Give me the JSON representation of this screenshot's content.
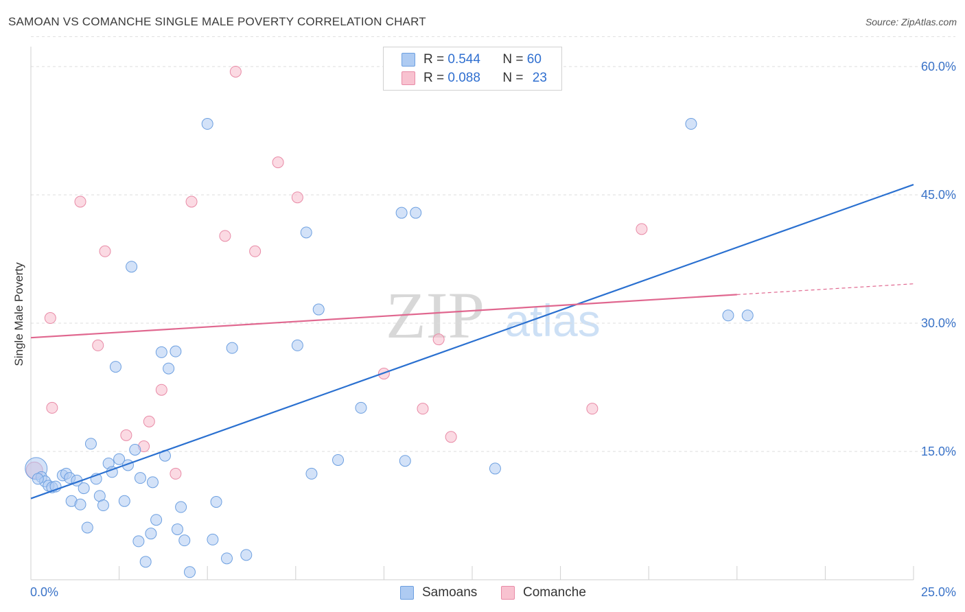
{
  "title": "SAMOAN VS COMANCHE SINGLE MALE POVERTY CORRELATION CHART",
  "source": "Source: ZipAtlas.com",
  "watermark": {
    "zip": "ZIP",
    "atlas": "atlas"
  },
  "legend": {
    "samoans": {
      "r_label": "R =",
      "r_value": "0.544",
      "n_label": "N =",
      "n_value": "60"
    },
    "comanche": {
      "r_label": "R =",
      "r_value": "0.088",
      "n_label": "N =",
      "n_value": "23"
    }
  },
  "colors": {
    "samoans_fill": "#aecbf2",
    "samoans_stroke": "#6c9fe0",
    "samoans_line": "#2a70d0",
    "comanche_fill": "#f8c2d0",
    "comanche_stroke": "#e88aa6",
    "comanche_line": "#e0678f",
    "axis_text": "#3a73c8",
    "grid": "#dddddd"
  },
  "chart_data": {
    "type": "scatter",
    "title": "SAMOAN VS COMANCHE SINGLE MALE POVERTY CORRELATION CHART",
    "xlabel": "",
    "ylabel": "Single Male Poverty",
    "xlim": [
      0,
      25
    ],
    "ylim": [
      0,
      60
    ],
    "x_tick_labels": [
      "0.0%",
      "25.0%"
    ],
    "y_tick_labels": [
      "15.0%",
      "30.0%",
      "45.0%",
      "60.0%"
    ],
    "y_ticks": [
      15,
      30,
      45,
      60
    ],
    "legend_position": "top-center",
    "bottom_legend": [
      "Samoans",
      "Comanche"
    ],
    "series": [
      {
        "name": "Samoans",
        "r": 0.544,
        "n": 60,
        "trend": {
          "x": [
            0,
            25
          ],
          "y": [
            9.5,
            46.2
          ],
          "dashed_from": null
        },
        "points": [
          [
            0.15,
            13.0
          ],
          [
            0.3,
            12.0
          ],
          [
            0.4,
            11.5
          ],
          [
            0.5,
            11.0
          ],
          [
            0.6,
            10.8
          ],
          [
            0.7,
            10.9
          ],
          [
            0.9,
            12.2
          ],
          [
            1.0,
            12.4
          ],
          [
            1.1,
            11.9
          ],
          [
            1.15,
            9.2
          ],
          [
            1.3,
            11.6
          ],
          [
            1.4,
            8.8
          ],
          [
            1.5,
            10.7
          ],
          [
            1.6,
            6.1
          ],
          [
            1.7,
            15.9
          ],
          [
            1.85,
            11.8
          ],
          [
            1.95,
            9.8
          ],
          [
            2.05,
            8.7
          ],
          [
            2.2,
            13.6
          ],
          [
            2.3,
            12.6
          ],
          [
            2.4,
            24.9
          ],
          [
            2.5,
            14.1
          ],
          [
            2.65,
            9.2
          ],
          [
            2.75,
            13.4
          ],
          [
            2.85,
            36.6
          ],
          [
            2.95,
            15.2
          ],
          [
            3.05,
            4.5
          ],
          [
            3.1,
            11.9
          ],
          [
            3.25,
            2.1
          ],
          [
            3.4,
            5.4
          ],
          [
            3.45,
            11.4
          ],
          [
            3.55,
            7.0
          ],
          [
            3.7,
            26.6
          ],
          [
            3.8,
            14.5
          ],
          [
            3.9,
            24.7
          ],
          [
            4.1,
            26.7
          ],
          [
            4.15,
            5.9
          ],
          [
            4.25,
            8.5
          ],
          [
            4.35,
            4.6
          ],
          [
            4.5,
            0.9
          ],
          [
            5.0,
            53.3
          ],
          [
            5.15,
            4.7
          ],
          [
            5.25,
            9.1
          ],
          [
            5.55,
            2.5
          ],
          [
            5.7,
            27.1
          ],
          [
            6.1,
            2.9
          ],
          [
            7.55,
            27.4
          ],
          [
            7.8,
            40.6
          ],
          [
            7.95,
            12.4
          ],
          [
            8.15,
            31.6
          ],
          [
            8.7,
            14.0
          ],
          [
            9.35,
            20.1
          ],
          [
            10.5,
            42.9
          ],
          [
            10.6,
            13.9
          ],
          [
            10.9,
            42.9
          ],
          [
            13.15,
            13.0
          ],
          [
            18.7,
            53.3
          ],
          [
            19.75,
            30.9
          ],
          [
            20.3,
            30.9
          ],
          [
            0.2,
            11.8
          ]
        ]
      },
      {
        "name": "Comanche",
        "r": 0.088,
        "n": 23,
        "trend": {
          "x": [
            0,
            25
          ],
          "y": [
            28.3,
            34.6
          ],
          "dashed_from": 20.0
        },
        "points": [
          [
            0.1,
            12.8
          ],
          [
            0.55,
            30.6
          ],
          [
            0.6,
            20.1
          ],
          [
            1.4,
            44.2
          ],
          [
            1.9,
            27.4
          ],
          [
            2.1,
            38.4
          ],
          [
            2.7,
            16.9
          ],
          [
            3.2,
            15.6
          ],
          [
            3.35,
            18.5
          ],
          [
            3.7,
            22.2
          ],
          [
            4.1,
            12.4
          ],
          [
            4.55,
            44.2
          ],
          [
            5.5,
            40.2
          ],
          [
            5.8,
            59.4
          ],
          [
            6.35,
            38.4
          ],
          [
            7.0,
            48.8
          ],
          [
            7.55,
            44.7
          ],
          [
            10.0,
            24.1
          ],
          [
            11.1,
            20.0
          ],
          [
            11.55,
            28.1
          ],
          [
            11.9,
            16.7
          ],
          [
            15.9,
            20.0
          ],
          [
            17.3,
            41.0
          ]
        ]
      }
    ]
  }
}
